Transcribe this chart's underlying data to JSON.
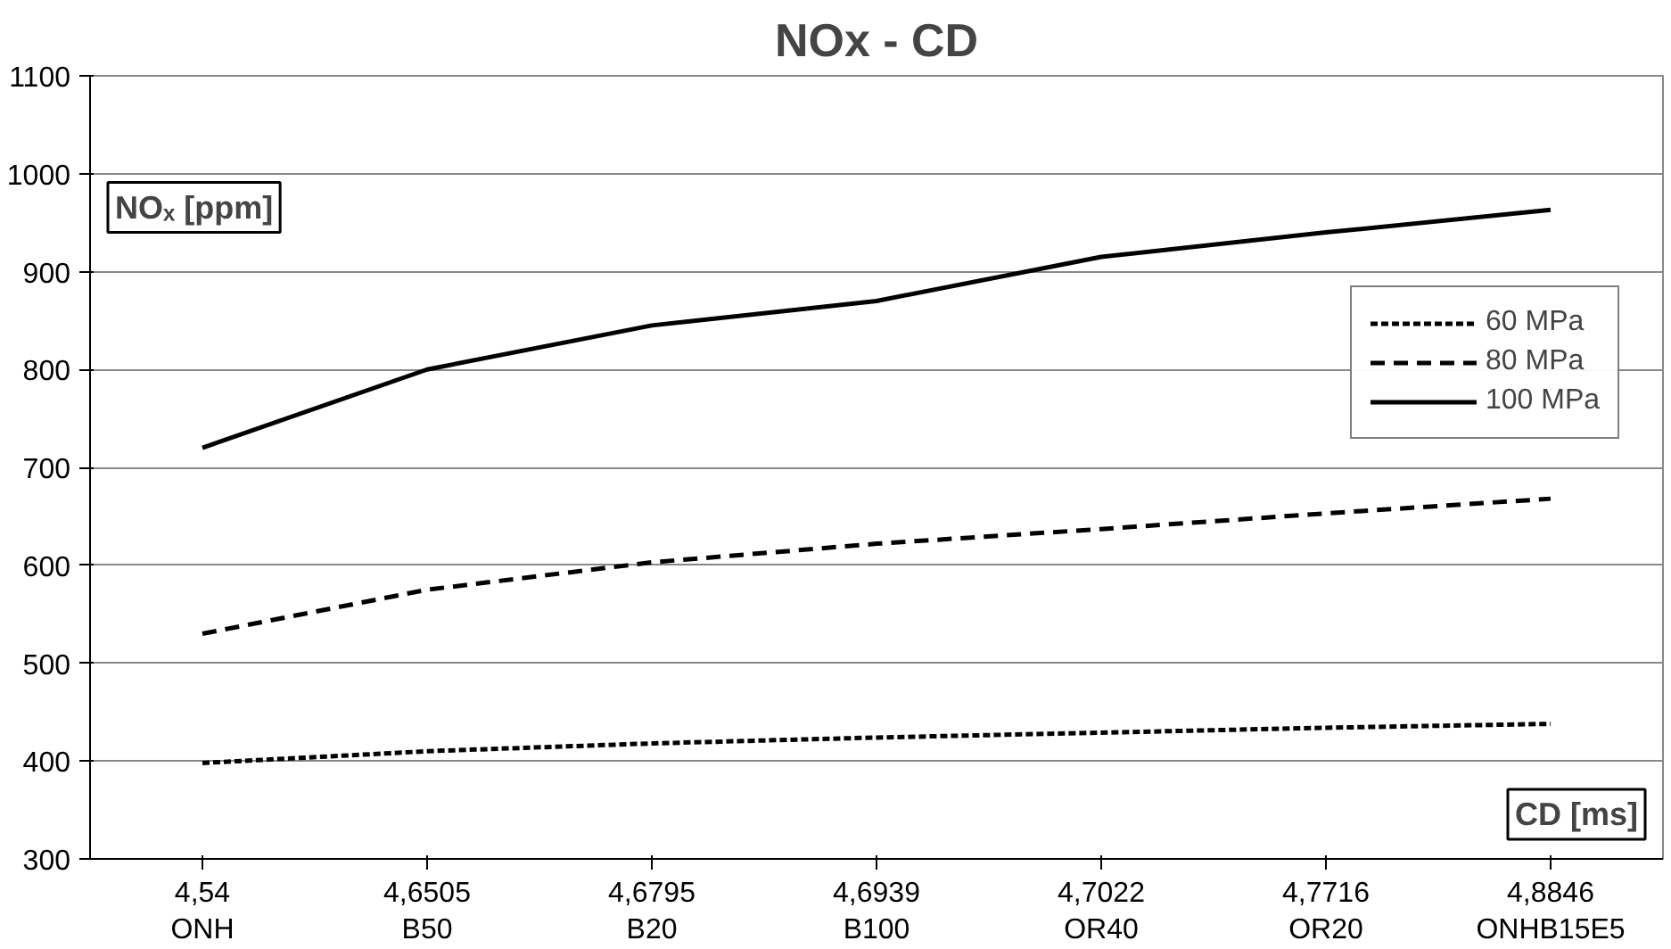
{
  "chart_data": {
    "type": "line",
    "title": "NOx - CD",
    "xlabel": "CD [ms]",
    "ylabel": "NOₓ [ppm]",
    "categories": [
      "4,54\nONH",
      "4,6505\nB50",
      "4,6795\nB20",
      "4,6939\nB100",
      "4,7022\nOR40",
      "4,7716\nOR20",
      "4,8846\nONHB15E5"
    ],
    "series": [
      {
        "name": "60 MPa",
        "color": "#000000",
        "line_style": "dotted",
        "values": [
          398,
          410,
          418,
          424,
          429,
          434,
          438
        ]
      },
      {
        "name": "80 MPa",
        "color": "#000000",
        "line_style": "dashed",
        "values": [
          530,
          575,
          603,
          622,
          637,
          653,
          668
        ]
      },
      {
        "name": "100 MPa",
        "color": "#000000",
        "line_style": "solid",
        "values": [
          720,
          800,
          845,
          870,
          915,
          940,
          963
        ]
      }
    ],
    "ylim": [
      300,
      1100
    ],
    "yticks": [
      300,
      400,
      500,
      600,
      700,
      800,
      900,
      1000,
      1100
    ],
    "grid": "y",
    "legend": "top right"
  }
}
